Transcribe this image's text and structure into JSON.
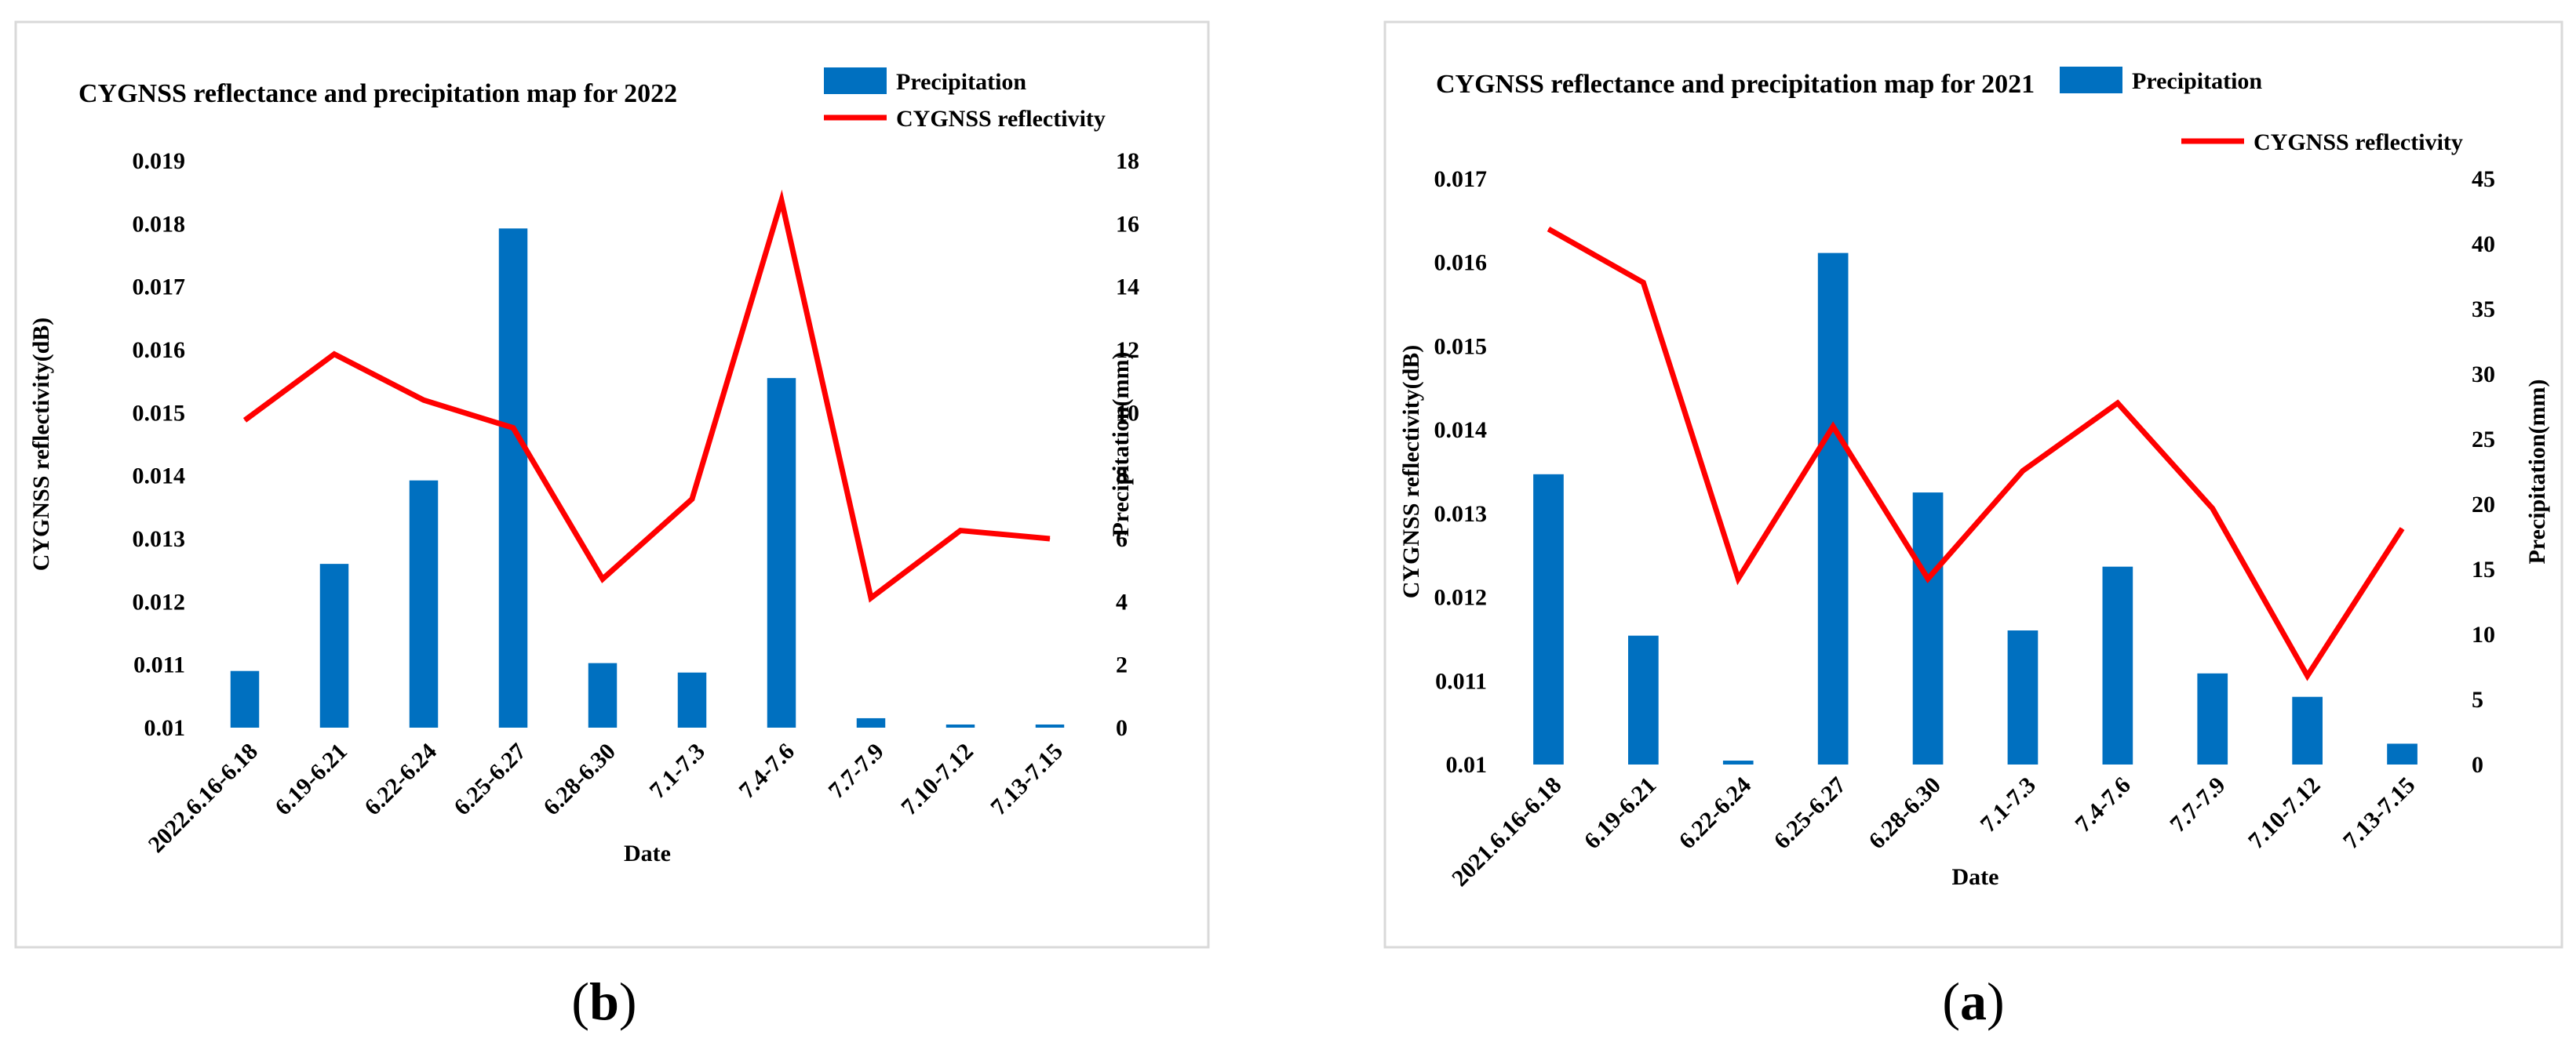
{
  "chart_data": [
    {
      "type": "bar+line",
      "caption_letter": "b",
      "title": "CYGNSS reflectance and precipitation map for 2022",
      "xlabel": "Date",
      "ylabel_left": "CYGNSS reflectivity(dB)",
      "ylabel_right": "Precipitation(mm)",
      "categories": [
        "2022.6.16-6.18",
        "6.19-6.21",
        "6.22-6.24",
        "6.25-6.27",
        "6.28-6.30",
        "7.1-7.3",
        "7.4-7.6",
        "7.7-7.9",
        "7.10-7.12",
        "7.13-7.15"
      ],
      "left_ylim": [
        0.01,
        0.019
      ],
      "left_ticks": [
        "0.01",
        "0.011",
        "0.012",
        "0.013",
        "0.014",
        "0.015",
        "0.016",
        "0.017",
        "0.018",
        "0.019"
      ],
      "right_ylim": [
        0,
        18
      ],
      "right_ticks": [
        "0",
        "2",
        "4",
        "6",
        "8",
        "10",
        "12",
        "14",
        "16",
        "18"
      ],
      "series": [
        {
          "name": "Precipitation",
          "type": "bar",
          "axis": "right",
          "color": "#0070C0",
          "values": [
            1.8,
            5.2,
            7.85,
            15.85,
            2.05,
            1.75,
            11.1,
            0.3,
            0.1,
            0.1
          ]
        },
        {
          "name": "CYGNSS reflectivity",
          "type": "line",
          "axis": "left",
          "color": "#FF0000",
          "values": [
            0.01488,
            0.01593,
            0.0152,
            0.01476,
            0.01236,
            0.01363,
            0.01837,
            0.01206,
            0.01313,
            0.013
          ]
        }
      ]
    },
    {
      "type": "bar+line",
      "caption_letter": "a",
      "title": "CYGNSS reflectance and precipitation map for 2021",
      "xlabel": "Date",
      "ylabel_left": "CYGNSS reflectivity(dB)",
      "ylabel_right": "Precipitation(mm)",
      "categories": [
        "2021.6.16-6.18",
        "6.19-6.21",
        "6.22-6.24",
        "6.25-6.27",
        "6.28-6.30",
        "7.1-7.3",
        "7.4-7.6",
        "7.7-7.9",
        "7.10-7.12",
        "7.13-7.15"
      ],
      "left_ylim": [
        0.01,
        0.017
      ],
      "left_ticks": [
        "0.01",
        "0.011",
        "0.012",
        "0.013",
        "0.014",
        "0.015",
        "0.016",
        "0.017"
      ],
      "right_ylim": [
        0,
        45
      ],
      "right_ticks": [
        "0",
        "5",
        "10",
        "15",
        "20",
        "25",
        "30",
        "35",
        "40",
        "45"
      ],
      "series": [
        {
          "name": "Precipitation",
          "type": "bar",
          "axis": "right",
          "color": "#0070C0",
          "values": [
            22.3,
            9.9,
            0.3,
            39.3,
            20.9,
            10.3,
            15.2,
            7.0,
            5.2,
            1.6
          ]
        },
        {
          "name": "CYGNSS reflectivity",
          "type": "line",
          "axis": "left",
          "color": "#FF0000",
          "values": [
            0.0164,
            0.01576,
            0.01222,
            0.01404,
            0.01222,
            0.01351,
            0.01432,
            0.01306,
            0.01106,
            0.01282
          ]
        }
      ]
    }
  ]
}
